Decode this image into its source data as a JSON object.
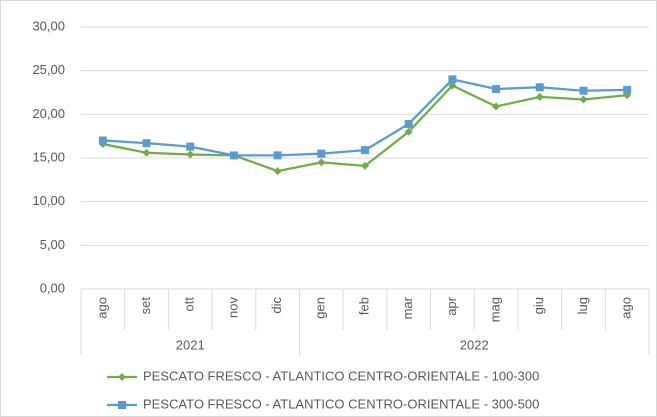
{
  "chart_data": {
    "type": "line",
    "categories": [
      "ago",
      "set",
      "ott",
      "nov",
      "dic",
      "gen",
      "feb",
      "mar",
      "apr",
      "mag",
      "giu",
      "lug",
      "ago"
    ],
    "x_groups": [
      "2021",
      null,
      null,
      null,
      null,
      "2022",
      null,
      null,
      null,
      null,
      null,
      null,
      null
    ],
    "series": [
      {
        "name": "PESCATO FRESCO - ATLANTICO CENTRO-ORIENTALE - 100-300",
        "color": "#70ad47",
        "marker": "diamond",
        "values": [
          16.6,
          15.6,
          15.4,
          15.3,
          13.5,
          14.5,
          14.1,
          18.0,
          23.3,
          20.9,
          22.0,
          21.7,
          22.2
        ]
      },
      {
        "name": "PESCATO FRESCO - ATLANTICO CENTRO-ORIENTALE - 300-500",
        "color": "#5b9bd5",
        "marker": "square",
        "values": [
          17.0,
          16.7,
          16.3,
          15.3,
          15.3,
          15.5,
          15.9,
          18.9,
          24.0,
          22.9,
          23.1,
          22.7,
          22.8
        ]
      }
    ],
    "ylim": [
      0,
      30
    ],
    "yticks": [
      {
        "value": 0,
        "label": "0,00"
      },
      {
        "value": 5,
        "label": "5,00"
      },
      {
        "value": 10,
        "label": "10,00"
      },
      {
        "value": 15,
        "label": "15,00"
      },
      {
        "value": 20,
        "label": "20,00"
      },
      {
        "value": 25,
        "label": "25,00"
      },
      {
        "value": 30,
        "label": "30,00"
      }
    ],
    "grid": true,
    "legend": "bottom"
  }
}
